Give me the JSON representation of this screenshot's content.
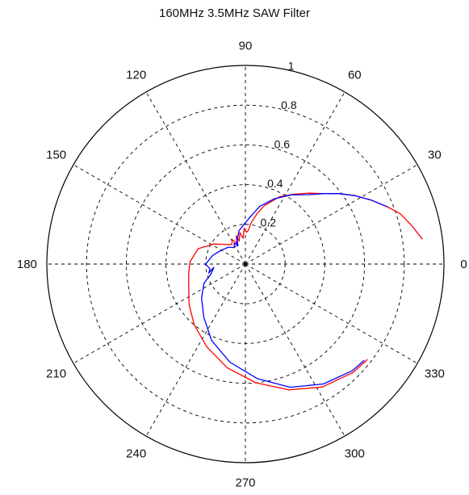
{
  "chart_data": {
    "type": "polar",
    "title": "160MHz 3.5MHz SAW Filter",
    "r_max": 1,
    "radial_ticks": [
      {
        "value": 0.2,
        "label": "0.2"
      },
      {
        "value": 0.4,
        "label": "0.4"
      },
      {
        "value": 0.6,
        "label": "0.6"
      },
      {
        "value": 0.8,
        "label": "0.8"
      },
      {
        "value": 1.0,
        "label": "1"
      }
    ],
    "radial_label_angle": 80,
    "angular_ticks": [
      {
        "angle": 0,
        "label": "0"
      },
      {
        "angle": 30,
        "label": "30"
      },
      {
        "angle": 60,
        "label": "60"
      },
      {
        "angle": 90,
        "label": "90"
      },
      {
        "angle": 120,
        "label": "120"
      },
      {
        "angle": 150,
        "label": "150"
      },
      {
        "angle": 180,
        "label": "180"
      },
      {
        "angle": 210,
        "label": "210"
      },
      {
        "angle": 240,
        "label": "240"
      },
      {
        "angle": 270,
        "label": "270"
      },
      {
        "angle": 300,
        "label": "300"
      },
      {
        "angle": 330,
        "label": "330"
      }
    ],
    "grid": true,
    "series": [
      {
        "color": "#ff0000",
        "points": [
          [
            8,
            0.9
          ],
          [
            13,
            0.86
          ],
          [
            18,
            0.82
          ],
          [
            22,
            0.77
          ],
          [
            27,
            0.71
          ],
          [
            32,
            0.65
          ],
          [
            37,
            0.59
          ],
          [
            42,
            0.53
          ],
          [
            48,
            0.48
          ],
          [
            55,
            0.43
          ],
          [
            63,
            0.38
          ],
          [
            72,
            0.31
          ],
          [
            77,
            0.26
          ],
          [
            82,
            0.21
          ],
          [
            85,
            0.17
          ],
          [
            88,
            0.16
          ],
          [
            92,
            0.18
          ],
          [
            95,
            0.13
          ],
          [
            100,
            0.16
          ],
          [
            105,
            0.12
          ],
          [
            108,
            0.15
          ],
          [
            112,
            0.11
          ],
          [
            118,
            0.14
          ],
          [
            125,
            0.12
          ],
          [
            135,
            0.14
          ],
          [
            148,
            0.19
          ],
          [
            162,
            0.25
          ],
          [
            178,
            0.28
          ],
          [
            190,
            0.29
          ],
          [
            203,
            0.31
          ],
          [
            216,
            0.35
          ],
          [
            230,
            0.4
          ],
          [
            245,
            0.46
          ],
          [
            260,
            0.53
          ],
          [
            275,
            0.6
          ],
          [
            289,
            0.67
          ],
          [
            302,
            0.73
          ],
          [
            315,
            0.77
          ],
          [
            322,
            0.78
          ]
        ]
      },
      {
        "color": "#0000ff",
        "points": [
          [
            22,
            0.77
          ],
          [
            27,
            0.71
          ],
          [
            32,
            0.65
          ],
          [
            37,
            0.59
          ],
          [
            42,
            0.53
          ],
          [
            48,
            0.47
          ],
          [
            56,
            0.42
          ],
          [
            66,
            0.36
          ],
          [
            76,
            0.3
          ],
          [
            84,
            0.24
          ],
          [
            92,
            0.2
          ],
          [
            101,
            0.17
          ],
          [
            108,
            0.13
          ],
          [
            115,
            0.1
          ],
          [
            108,
            0.14
          ],
          [
            112,
            0.1
          ],
          [
            118,
            0.12
          ],
          [
            124,
            0.1
          ],
          [
            135,
            0.12
          ],
          [
            150,
            0.14
          ],
          [
            165,
            0.17
          ],
          [
            180,
            0.2
          ],
          [
            188,
            0.18
          ],
          [
            194,
            0.19
          ],
          [
            186,
            0.16
          ],
          [
            196,
            0.18
          ],
          [
            205,
            0.23
          ],
          [
            218,
            0.28
          ],
          [
            232,
            0.34
          ],
          [
            246,
            0.42
          ],
          [
            261,
            0.5
          ],
          [
            276,
            0.58
          ],
          [
            290,
            0.66
          ],
          [
            303,
            0.72
          ],
          [
            315,
            0.76
          ],
          [
            321,
            0.77
          ]
        ]
      }
    ]
  }
}
